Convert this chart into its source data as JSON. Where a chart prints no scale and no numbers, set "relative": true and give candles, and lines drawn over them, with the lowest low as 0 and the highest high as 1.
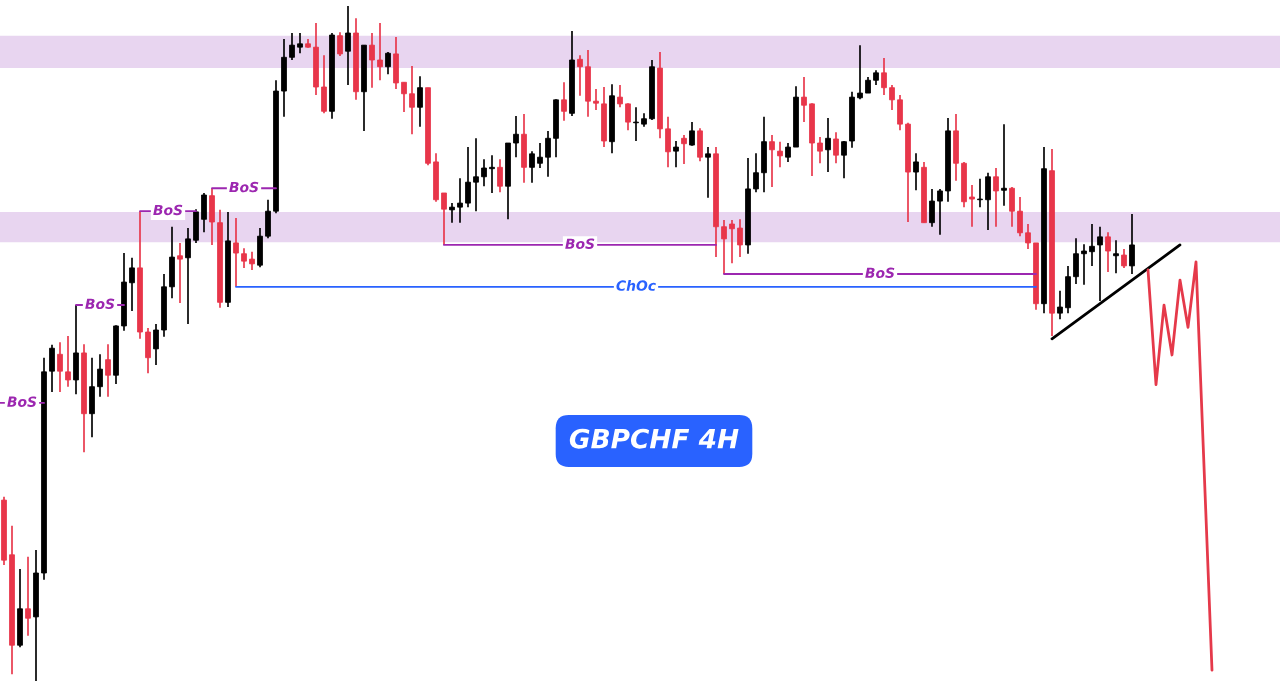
{
  "chart_data": {
    "type": "candlestick",
    "title": "GBPCHF 4H",
    "relative": true,
    "tick_labels": false,
    "categories": [
      null,
      null,
      null,
      null,
      null,
      null,
      null,
      null,
      null,
      null,
      null,
      null,
      null,
      null,
      null,
      null,
      null,
      null,
      null,
      null,
      null,
      null,
      null,
      null,
      null,
      null,
      null,
      null,
      null,
      null,
      null,
      null,
      null,
      null,
      null,
      null,
      null,
      null,
      null,
      null,
      null,
      null,
      null,
      null,
      null,
      null,
      null,
      null,
      null,
      null,
      null,
      null,
      null,
      null,
      null,
      null,
      null,
      null,
      null,
      null,
      null,
      null,
      null,
      null,
      null,
      null,
      null,
      null,
      null,
      null,
      null,
      null,
      null,
      null,
      null,
      null,
      null,
      null,
      null,
      null,
      null,
      null,
      null,
      null,
      null,
      null,
      null,
      null,
      null,
      null,
      null,
      null,
      null,
      null,
      null,
      null,
      null,
      null,
      null,
      null,
      null,
      null,
      null,
      null,
      null,
      null,
      null,
      null,
      null,
      null,
      null,
      null,
      null,
      null,
      null,
      null,
      null,
      null,
      null,
      null,
      null,
      null,
      null,
      null,
      null,
      null,
      null,
      null,
      null,
      null,
      null,
      null,
      null,
      null,
      null,
      null,
      null,
      null,
      null,
      null,
      null,
      null,
      null,
      null,
      null,
      null,
      null,
      null,
      null,
      null,
      null,
      null
    ],
    "ohlc": [
      [
        0.268,
        0.273,
        0.172,
        0.179
      ],
      [
        0.187,
        0.23,
        0.01,
        0.053
      ],
      [
        0.053,
        0.166,
        0.05,
        0.107
      ],
      [
        0.107,
        0.184,
        0.067,
        0.093
      ],
      [
        0.095,
        0.194,
        0,
        0.16
      ],
      [
        0.16,
        0.479,
        0.15,
        0.458
      ],
      [
        0.459,
        0.498,
        0.428,
        0.493
      ],
      [
        0.484,
        0.502,
        0.428,
        0.459
      ],
      [
        0.458,
        0.511,
        0.436,
        0.446
      ],
      [
        0.446,
        0.557,
        0.425,
        0.486
      ],
      [
        0.486,
        0.499,
        0.339,
        0.396
      ],
      [
        0.396,
        0.479,
        0.361,
        0.436
      ],
      [
        0.436,
        0.484,
        0.421,
        0.462
      ],
      [
        0.476,
        0.499,
        0.421,
        0.453
      ],
      [
        0.453,
        0.527,
        0.44,
        0.526
      ],
      [
        0.526,
        0.634,
        0.519,
        0.591
      ],
      [
        0.59,
        0.627,
        0.548,
        0.612
      ],
      [
        0.612,
        0.696,
        0.507,
        0.517
      ],
      [
        0.517,
        0.523,
        0.456,
        0.479
      ],
      [
        0.492,
        0.529,
        0.468,
        0.52
      ],
      [
        0.52,
        0.603,
        0.51,
        0.584
      ],
      [
        0.584,
        0.673,
        0.567,
        0.628
      ],
      [
        0.63,
        0.649,
        0.56,
        0.625
      ],
      [
        0.627,
        0.671,
        0.529,
        0.655
      ],
      [
        0.653,
        0.699,
        0.649,
        0.695
      ],
      [
        0.684,
        0.723,
        0.665,
        0.72
      ],
      [
        0.719,
        0.73,
        0.646,
        0.68
      ],
      [
        0.679,
        0.698,
        0.553,
        0.561
      ],
      [
        0.561,
        0.695,
        0.554,
        0.652
      ],
      [
        0.649,
        0.686,
        0.584,
        0.634
      ],
      [
        0.633,
        0.641,
        0.612,
        0.622
      ],
      [
        0.625,
        0.636,
        0.609,
        0.618
      ],
      [
        0.616,
        0.671,
        0.613,
        0.659
      ],
      [
        0.659,
        0.713,
        0.656,
        0.696
      ],
      [
        0.696,
        0.89,
        0.693,
        0.874
      ],
      [
        0.874,
        0.951,
        0.836,
        0.924
      ],
      [
        0.924,
        0.96,
        0.92,
        0.942
      ],
      [
        0.939,
        0.96,
        0.93,
        0.944
      ],
      [
        0.944,
        0.951,
        0.938,
        0.939
      ],
      [
        0.939,
        0.975,
        0.868,
        0.88
      ],
      [
        0.88,
        0.927,
        0.841,
        0.844
      ],
      [
        0.844,
        0.96,
        0.833,
        0.957
      ],
      [
        0.956,
        0.961,
        0.926,
        0.929
      ],
      [
        0.933,
        1,
        0.883,
        0.96
      ],
      [
        0.96,
        0.982,
        0.861,
        0.873
      ],
      [
        0.873,
        0.942,
        0.815,
        0.942
      ],
      [
        0.942,
        0.96,
        0.879,
        0.92
      ],
      [
        0.92,
        0.975,
        0.89,
        0.91
      ],
      [
        0.91,
        0.932,
        0.899,
        0.93
      ],
      [
        0.929,
        0.954,
        0.877,
        0.886
      ],
      [
        0.887,
        0.887,
        0.843,
        0.87
      ],
      [
        0.87,
        0.911,
        0.81,
        0.85
      ],
      [
        0.85,
        0.896,
        0.821,
        0.879
      ],
      [
        0.879,
        0.879,
        0.764,
        0.767
      ],
      [
        0.769,
        0.782,
        0.71,
        0.713
      ],
      [
        0.723,
        0.723,
        0.646,
        0.699
      ],
      [
        0.698,
        0.708,
        0.679,
        0.702
      ],
      [
        0.702,
        0.745,
        0.679,
        0.708
      ],
      [
        0.708,
        0.791,
        0.702,
        0.739
      ],
      [
        0.739,
        0.804,
        0.696,
        0.747
      ],
      [
        0.747,
        0.773,
        0.733,
        0.76
      ],
      [
        0.759,
        0.779,
        0.723,
        0.761
      ],
      [
        0.761,
        0.773,
        0.724,
        0.733
      ],
      [
        0.733,
        0.797,
        0.684,
        0.797
      ],
      [
        0.797,
        0.837,
        0.776,
        0.81
      ],
      [
        0.81,
        0.84,
        0.738,
        0.761
      ],
      [
        0.761,
        0.785,
        0.738,
        0.781
      ],
      [
        0.767,
        0.797,
        0.76,
        0.776
      ],
      [
        0.776,
        0.815,
        0.747,
        0.804
      ],
      [
        0.804,
        0.862,
        0.776,
        0.861
      ],
      [
        0.861,
        0.887,
        0.83,
        0.844
      ],
      [
        0.841,
        0.963,
        0.837,
        0.92
      ],
      [
        0.921,
        0.927,
        0.867,
        0.91
      ],
      [
        0.91,
        0.935,
        0.836,
        0.859
      ],
      [
        0.859,
        0.877,
        0.846,
        0.856
      ],
      [
        0.855,
        0.88,
        0.791,
        0.8
      ],
      [
        0.799,
        0.884,
        0.782,
        0.867
      ],
      [
        0.865,
        0.883,
        0.85,
        0.855
      ],
      [
        0.855,
        0.856,
        0.816,
        0.828
      ],
      [
        0.827,
        0.85,
        0.8,
        0.828
      ],
      [
        0.825,
        0.841,
        0.821,
        0.833
      ],
      [
        0.833,
        0.92,
        0.831,
        0.91
      ],
      [
        0.908,
        0.932,
        0.804,
        0.818
      ],
      [
        0.818,
        0.836,
        0.761,
        0.784
      ],
      [
        0.785,
        0.8,
        0.761,
        0.791
      ],
      [
        0.804,
        0.809,
        0.766,
        0.796
      ],
      [
        0.794,
        0.828,
        0.793,
        0.815
      ],
      [
        0.815,
        0.819,
        0.77,
        0.776
      ],
      [
        0.776,
        0.791,
        0.716,
        0.781
      ],
      [
        0.781,
        0.791,
        0.628,
        0.673
      ],
      [
        0.673,
        0.683,
        0.603,
        0.655
      ],
      [
        0.677,
        0.683,
        0.619,
        0.67
      ],
      [
        0.671,
        0.684,
        0.628,
        0.646
      ],
      [
        0.646,
        0.775,
        0.633,
        0.729
      ],
      [
        0.729,
        0.782,
        0.724,
        0.753
      ],
      [
        0.753,
        0.836,
        0.724,
        0.799
      ],
      [
        0.799,
        0.809,
        0.732,
        0.787
      ],
      [
        0.785,
        0.799,
        0.761,
        0.778
      ],
      [
        0.776,
        0.797,
        0.769,
        0.791
      ],
      [
        0.791,
        0.881,
        0.791,
        0.865
      ],
      [
        0.865,
        0.895,
        0.828,
        0.853
      ],
      [
        0.855,
        0.856,
        0.748,
        0.797
      ],
      [
        0.797,
        0.806,
        0.767,
        0.785
      ],
      [
        0.787,
        0.834,
        0.754,
        0.804
      ],
      [
        0.803,
        0.813,
        0.767,
        0.779
      ],
      [
        0.779,
        0.8,
        0.745,
        0.799
      ],
      [
        0.8,
        0.873,
        0.79,
        0.865
      ],
      [
        0.864,
        0.942,
        0.862,
        0.871
      ],
      [
        0.871,
        0.895,
        0.871,
        0.89
      ],
      [
        0.89,
        0.905,
        0.883,
        0.901
      ],
      [
        0.901,
        0.923,
        0.868,
        0.879
      ],
      [
        0.879,
        0.883,
        0.846,
        0.861
      ],
      [
        0.861,
        0.868,
        0.816,
        0.825
      ],
      [
        0.825,
        0.827,
        0.68,
        0.754
      ],
      [
        0.754,
        0.782,
        0.727,
        0.769
      ],
      [
        0.761,
        0.769,
        0.679,
        0.679
      ],
      [
        0.679,
        0.729,
        0.673,
        0.711
      ],
      [
        0.711,
        0.729,
        0.661,
        0.726
      ],
      [
        0.726,
        0.834,
        0.71,
        0.815
      ],
      [
        0.815,
        0.84,
        0.741,
        0.767
      ],
      [
        0.767,
        0.769,
        0.702,
        0.71
      ],
      [
        0.717,
        0.735,
        0.673,
        0.714
      ],
      [
        0.713,
        0.744,
        0.702,
        0.714
      ],
      [
        0.713,
        0.753,
        0.668,
        0.747
      ],
      [
        0.747,
        0.76,
        0.673,
        0.726
      ],
      [
        0.727,
        0.825,
        0.704,
        0.73
      ],
      [
        0.73,
        0.732,
        0.673,
        0.696
      ],
      [
        0.696,
        0.717,
        0.659,
        0.664
      ],
      [
        0.664,
        0.677,
        0.64,
        0.649
      ],
      [
        0.649,
        0.649,
        0.55,
        0.559
      ],
      [
        0.559,
        0.791,
        0.545,
        0.759
      ],
      [
        0.756,
        0.788,
        0.511,
        0.545
      ],
      [
        0.545,
        0.578,
        0.536,
        0.554
      ],
      [
        0.553,
        0.615,
        0.545,
        0.599
      ],
      [
        0.599,
        0.656,
        0.588,
        0.633
      ],
      [
        0.633,
        0.647,
        0.587,
        0.637
      ],
      [
        0.636,
        0.677,
        0.615,
        0.644
      ],
      [
        0.646,
        0.673,
        0.563,
        0.658
      ],
      [
        0.658,
        0.665,
        0.606,
        0.637
      ],
      [
        0.63,
        0.653,
        0.604,
        0.633
      ],
      [
        0.631,
        0.64,
        0.612,
        0.615
      ],
      [
        0.615,
        0.692,
        0.603,
        0.646
      ],
      null,
      null,
      null,
      null,
      null,
      null,
      null,
      null,
      null,
      null
    ],
    "colors": [
      "#e8364a",
      "#e8364a",
      "#000000",
      "#e8364a",
      "#000000",
      "#000000",
      "#000000",
      "#e8364a",
      "#e8364a",
      "#000000",
      "#e8364a",
      "#000000",
      "#000000",
      "#e8364a",
      "#000000",
      "#000000",
      "#000000",
      "#e8364a",
      "#e8364a",
      "#000000",
      "#000000",
      "#000000",
      "#e8364a",
      "#000000",
      "#000000",
      "#000000",
      "#e8364a",
      "#e8364a",
      "#000000",
      "#e8364a",
      "#e8364a",
      "#e8364a",
      "#000000",
      "#000000",
      "#000000",
      "#000000",
      "#000000",
      "#000000",
      "#e8364a",
      "#e8364a",
      "#e8364a",
      "#000000",
      "#e8364a",
      "#000000",
      "#e8364a",
      "#000000",
      "#e8364a",
      "#e8364a",
      "#000000",
      "#e8364a",
      "#e8364a",
      "#e8364a",
      "#000000",
      "#e8364a",
      "#e8364a",
      "#e8364a",
      "#000000",
      "#000000",
      "#000000",
      "#000000",
      "#000000",
      "#000000",
      "#e8364a",
      "#000000",
      "#000000",
      "#e8364a",
      "#000000",
      "#000000",
      "#000000",
      "#000000",
      "#e8364a",
      "#000000",
      "#e8364a",
      "#e8364a",
      "#e8364a",
      "#e8364a",
      "#000000",
      "#e8364a",
      "#e8364a",
      "#000000",
      "#000000",
      "#000000",
      "#e8364a",
      "#e8364a",
      "#000000",
      "#e8364a",
      "#000000",
      "#e8364a",
      "#000000",
      "#e8364a",
      "#e8364a",
      "#e8364a",
      "#e8364a",
      "#000000",
      "#000000",
      "#000000",
      "#e8364a",
      "#e8364a",
      "#000000",
      "#000000",
      "#e8364a",
      "#e8364a",
      "#e8364a",
      "#000000",
      "#e8364a",
      "#000000",
      "#000000",
      "#000000",
      "#000000",
      "#000000",
      "#e8364a",
      "#e8364a",
      "#e8364a",
      "#e8364a",
      "#000000",
      "#e8364a",
      "#000000",
      "#000000",
      "#000000",
      "#e8364a",
      "#e8364a",
      "#e8364a",
      "#000000",
      "#000000",
      "#e8364a",
      "#000000",
      "#e8364a",
      "#e8364a",
      "#e8364a",
      "#e8364a",
      "#000000",
      "#e8364a",
      "#000000",
      "#000000",
      "#000000",
      "#000000",
      "#000000",
      "#000000",
      "#e8364a",
      "#000000",
      "#e8364a",
      "#000000",
      null,
      null,
      null,
      null,
      null,
      null,
      null,
      null,
      null,
      null
    ],
    "series": [
      {
        "type": "line",
        "color": "#000000",
        "values": [
          null,
          null,
          null,
          null,
          null,
          null,
          null,
          null,
          null,
          null,
          null,
          null,
          null,
          null,
          null,
          null,
          null,
          null,
          null,
          null,
          null,
          null,
          null,
          null,
          null,
          null,
          null,
          null,
          null,
          null,
          null,
          null,
          null,
          null,
          null,
          null,
          null,
          null,
          null,
          null,
          null,
          null,
          null,
          null,
          null,
          null,
          null,
          null,
          null,
          null,
          null,
          null,
          null,
          null,
          null,
          null,
          null,
          null,
          null,
          null,
          null,
          null,
          null,
          null,
          null,
          null,
          null,
          null,
          null,
          null,
          null,
          null,
          null,
          null,
          null,
          null,
          null,
          null,
          null,
          null,
          null,
          null,
          null,
          null,
          null,
          null,
          null,
          null,
          null,
          null,
          null,
          null,
          null,
          null,
          null,
          null,
          null,
          null,
          null,
          null,
          null,
          null,
          null,
          null,
          null,
          null,
          null,
          null,
          null,
          null,
          null,
          null,
          null,
          null,
          null,
          null,
          null,
          null,
          null,
          null,
          null,
          null,
          null,
          null,
          null,
          null,
          null,
          null,
          null,
          null,
          null,
          0.507,
          null,
          null,
          null,
          null,
          null,
          null,
          null,
          null,
          null,
          null,
          null,
          null,
          null,
          null,
          null,
          0.646,
          null,
          null,
          null,
          null
        ]
      },
      {
        "type": "line",
        "color": "#e5394a",
        "values": [
          null,
          null,
          null,
          null,
          null,
          null,
          null,
          null,
          null,
          null,
          null,
          null,
          null,
          null,
          null,
          null,
          null,
          null,
          null,
          null,
          null,
          null,
          null,
          null,
          null,
          null,
          null,
          null,
          null,
          null,
          null,
          null,
          null,
          null,
          null,
          null,
          null,
          null,
          null,
          null,
          null,
          null,
          null,
          null,
          null,
          null,
          null,
          null,
          null,
          null,
          null,
          null,
          null,
          null,
          null,
          null,
          null,
          null,
          null,
          null,
          null,
          null,
          null,
          null,
          null,
          null,
          null,
          null,
          null,
          null,
          null,
          null,
          null,
          null,
          null,
          null,
          null,
          null,
          null,
          null,
          null,
          null,
          null,
          null,
          null,
          null,
          null,
          null,
          null,
          null,
          null,
          null,
          null,
          null,
          null,
          null,
          null,
          null,
          null,
          null,
          null,
          null,
          null,
          null,
          null,
          null,
          null,
          null,
          null,
          null,
          null,
          null,
          null,
          null,
          null,
          null,
          null,
          null,
          null,
          null,
          null,
          null,
          null,
          null,
          null,
          null,
          null,
          null,
          null,
          null,
          null,
          null,
          null,
          null,
          null,
          null,
          null,
          null,
          null,
          null,
          null,
          null,
          null,
          0.609,
          0.439,
          0.557,
          0.483,
          0.594,
          0.524,
          0.621,
          null,
          0.016
        ]
      }
    ],
    "bands": [
      {
        "axis": "y",
        "from": 0.908,
        "to": 0.956,
        "color": "#e8d5f0"
      },
      {
        "axis": "y",
        "from": 0.65,
        "to": 0.695,
        "color": "#e8d5f0"
      }
    ],
    "ref_lines": [
      {
        "axis": "y",
        "value": 0.412,
        "label": "BoS",
        "color": "#9c27b0"
      },
      {
        "axis": "y",
        "value": 0.557,
        "label": "BoS",
        "color": "#9c27b0"
      },
      {
        "axis": "y",
        "value": 0.696,
        "label": "BoS",
        "color": "#9c27b0"
      },
      {
        "axis": "y",
        "value": 0.73,
        "label": "BoS",
        "color": "#9c27b0"
      },
      {
        "axis": "y",
        "value": 0.646,
        "label": "BoS",
        "color": "#9c27b0"
      },
      {
        "axis": "y",
        "value": 0.603,
        "label": "BoS",
        "color": "#9c27b0"
      },
      {
        "axis": "y",
        "value": 0.584,
        "label": "ChOc",
        "color": "#2962ff"
      }
    ]
  }
}
